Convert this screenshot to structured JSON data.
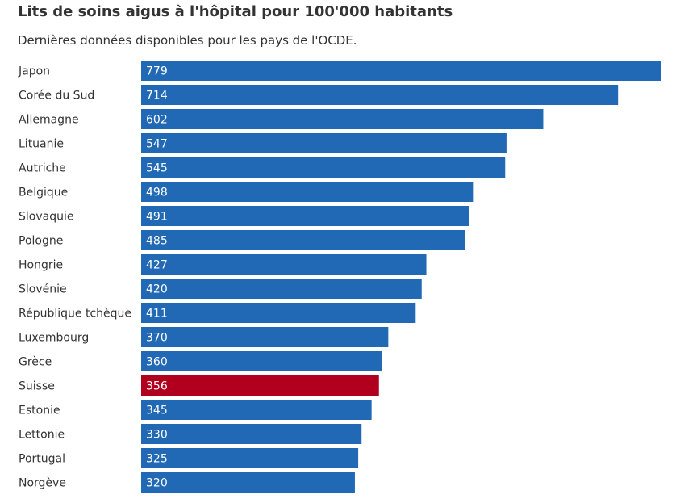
{
  "header": {
    "title": "Lits de soins aigus à l'hôpital pour 100'000 habitants",
    "subtitle": "Dernières données disponibles pour les pays de l'OCDE."
  },
  "colors": {
    "bar": "#2169b4",
    "highlight": "#b0001e"
  },
  "chart_data": {
    "type": "bar",
    "orientation": "horizontal",
    "title": "Lits de soins aigus à l'hôpital pour 100'000 habitants",
    "subtitle": "Dernières données disponibles pour les pays de l'OCDE.",
    "categories": [
      "Japon",
      "Corée du Sud",
      "Allemagne",
      "Lituanie",
      "Autriche",
      "Belgique",
      "Slovaquie",
      "Pologne",
      "Hongrie",
      "Slovénie",
      "République tchèque",
      "Luxembourg",
      "Grèce",
      "Suisse",
      "Estonie",
      "Lettonie",
      "Portugal",
      "Norgève"
    ],
    "values": [
      779,
      714,
      602,
      547,
      545,
      498,
      491,
      485,
      427,
      420,
      411,
      370,
      360,
      356,
      345,
      330,
      325,
      320
    ],
    "highlight": "Suisse",
    "xlim": [
      0,
      779
    ],
    "data_labels": true,
    "grid": false
  }
}
